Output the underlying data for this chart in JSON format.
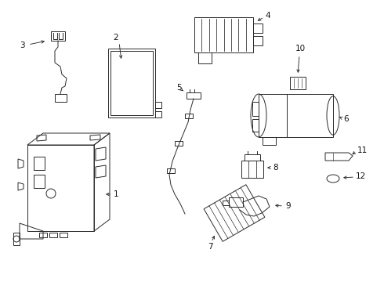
{
  "background_color": "#ffffff",
  "line_color": "#2a2a2a",
  "text_color": "#111111",
  "figsize": [
    4.9,
    3.6
  ],
  "dpi": 100,
  "lw": 0.7,
  "fontsize": 7.5
}
